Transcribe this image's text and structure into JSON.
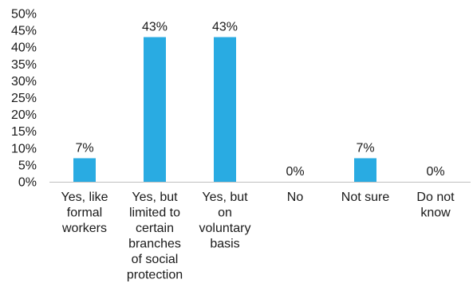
{
  "chart_data": {
    "type": "bar",
    "categories": [
      "Yes, like formal workers",
      "Yes, but limited to certain branches of social protection",
      "Yes, but on voluntary basis",
      "No",
      "Not sure",
      "Do not know"
    ],
    "category_lines": [
      [
        "Yes, like",
        "formal",
        "workers"
      ],
      [
        "Yes, but",
        "limited to",
        "certain",
        "branches",
        "of social",
        "protection"
      ],
      [
        "Yes, but",
        "on",
        "voluntary",
        "basis"
      ],
      [
        "No"
      ],
      [
        "Not sure"
      ],
      [
        "Do not",
        "know"
      ]
    ],
    "values": [
      7,
      43,
      43,
      0,
      7,
      0
    ],
    "data_labels": [
      "7%",
      "43%",
      "43%",
      "0%",
      "7%",
      "0%"
    ],
    "ylim": [
      0,
      50
    ],
    "y_ticks": [
      "0%",
      "5%",
      "10%",
      "15%",
      "20%",
      "25%",
      "30%",
      "35%",
      "40%",
      "45%",
      "50%"
    ],
    "grid": false,
    "legend": "none",
    "bar_color": "#29abe2",
    "axis_color": "#bfbfbf"
  }
}
